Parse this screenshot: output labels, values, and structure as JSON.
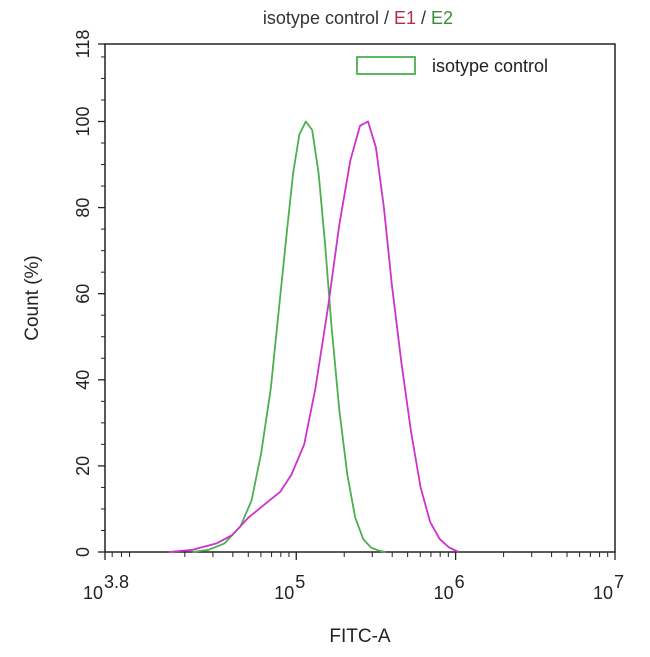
{
  "chart_data": {
    "type": "line",
    "title_parts": [
      {
        "text": "isotype control",
        "color": "#333333"
      },
      {
        "text": " / ",
        "color": "#333333"
      },
      {
        "text": "E1",
        "color": "#b0304a"
      },
      {
        "text": " / ",
        "color": "#333333"
      },
      {
        "text": "E2",
        "color": "#3a8a3a"
      }
    ],
    "xlabel": "FITC-A",
    "ylabel": "Count  (%)",
    "x_scale": "log10",
    "xlim": [
      3.8,
      7
    ],
    "ylim": [
      0,
      118
    ],
    "x_ticks": [
      {
        "exp": 3.8,
        "base": "10",
        "sup": "3.8"
      },
      {
        "exp": 5,
        "base": "10",
        "sup": "5"
      },
      {
        "exp": 6,
        "base": "10",
        "sup": "6"
      },
      {
        "exp": 7,
        "base": "10",
        "sup": "7"
      }
    ],
    "y_ticks": [
      0,
      20,
      40,
      60,
      80,
      100,
      118
    ],
    "legend": {
      "placement": "top-right",
      "entries": [
        {
          "label": "isotype control",
          "color": "#4caf50"
        }
      ]
    },
    "series": [
      {
        "color": "#4caf50",
        "log10_x": [
          4.35,
          4.45,
          4.55,
          4.65,
          4.72,
          4.78,
          4.84,
          4.89,
          4.94,
          4.98,
          5.02,
          5.06,
          5.1,
          5.14,
          5.18,
          5.22,
          5.27,
          5.32,
          5.37,
          5.42,
          5.47,
          5.52,
          5.56
        ],
        "y": [
          0,
          0.5,
          2,
          6,
          12,
          23,
          38,
          56,
          74,
          88,
          97,
          100,
          98,
          88,
          72,
          53,
          33,
          18,
          8,
          3,
          1,
          0.3,
          0
        ]
      },
      {
        "color": "#cc33cc",
        "log10_x": [
          4.2,
          4.35,
          4.5,
          4.6,
          4.7,
          4.8,
          4.9,
          4.97,
          5.05,
          5.12,
          5.2,
          5.27,
          5.34,
          5.4,
          5.45,
          5.5,
          5.55,
          5.6,
          5.66,
          5.72,
          5.78,
          5.84,
          5.9,
          5.96,
          6.02
        ],
        "y": [
          0,
          0.5,
          2,
          4,
          8,
          11,
          14,
          18,
          25,
          38,
          57,
          76,
          91,
          99,
          100,
          94,
          80,
          62,
          44,
          28,
          15,
          7,
          3,
          1,
          0
        ]
      }
    ]
  }
}
